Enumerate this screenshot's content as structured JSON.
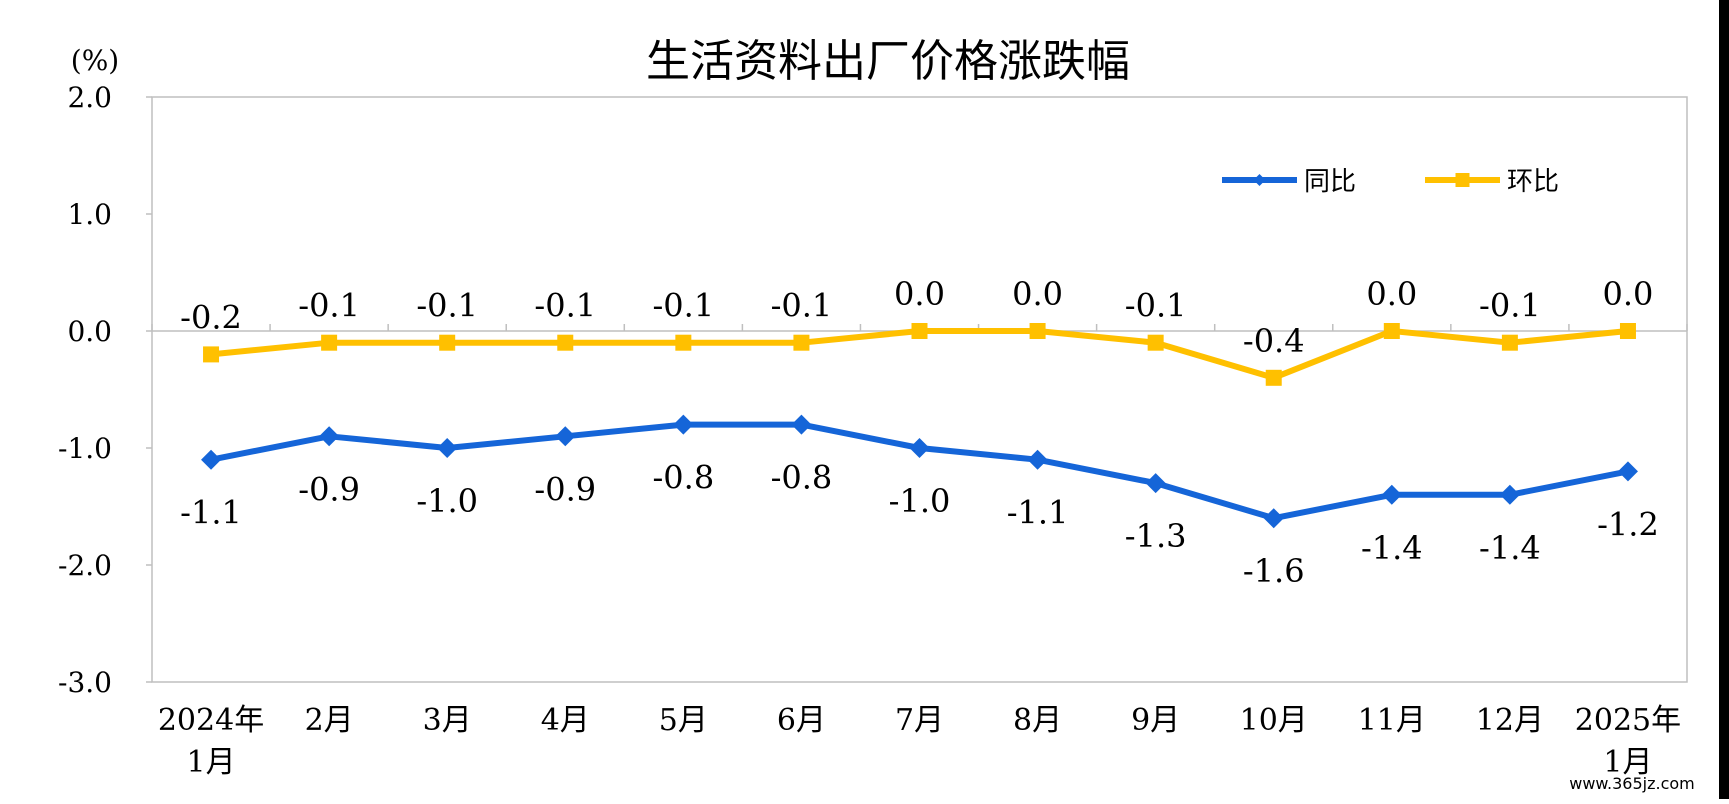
{
  "colors": {
    "yoy": "#1565D8",
    "mom": "#FFC000",
    "zero_line": "#BFBFBF",
    "frame": "#BFBFBF"
  },
  "chart_data": {
    "type": "line",
    "title": "生活资料出厂价格涨跌幅",
    "ylabel": "(%)",
    "ylim": [
      -3.0,
      2.0
    ],
    "yticks": [
      "2.0",
      "1.0",
      "0.0",
      "-1.0",
      "-2.0",
      "-3.0"
    ],
    "categories": [
      [
        "2024年",
        "1月"
      ],
      [
        "2月"
      ],
      [
        "3月"
      ],
      [
        "4月"
      ],
      [
        "5月"
      ],
      [
        "6月"
      ],
      [
        "7月"
      ],
      [
        "8月"
      ],
      [
        "9月"
      ],
      [
        "10月"
      ],
      [
        "11月"
      ],
      [
        "12月"
      ],
      [
        "2025年",
        "1月"
      ]
    ],
    "legend_position": "top-right",
    "series": [
      {
        "name": "同比",
        "values": [
          -1.1,
          -0.9,
          -1.0,
          -0.9,
          -0.8,
          -0.8,
          -1.0,
          -1.1,
          -1.3,
          -1.6,
          -1.4,
          -1.4,
          -1.2
        ],
        "labels": [
          "-1.1",
          "-0.9",
          "-1.0",
          "-0.9",
          "-0.8",
          "-0.8",
          "-1.0",
          "-1.1",
          "-1.3",
          "-1.6",
          "-1.4",
          "-1.4",
          "-1.2"
        ],
        "marker": "diamond"
      },
      {
        "name": "环比",
        "values": [
          -0.2,
          -0.1,
          -0.1,
          -0.1,
          -0.1,
          -0.1,
          0.0,
          0.0,
          -0.1,
          -0.4,
          0.0,
          -0.1,
          0.0
        ],
        "labels": [
          "-0.2",
          "-0.1",
          "-0.1",
          "-0.1",
          "-0.1",
          "-0.1",
          "0.0",
          "0.0",
          "-0.1",
          "-0.4",
          "0.0",
          "-0.1",
          "0.0"
        ],
        "marker": "square"
      }
    ]
  },
  "watermark": "www.365jz.com"
}
